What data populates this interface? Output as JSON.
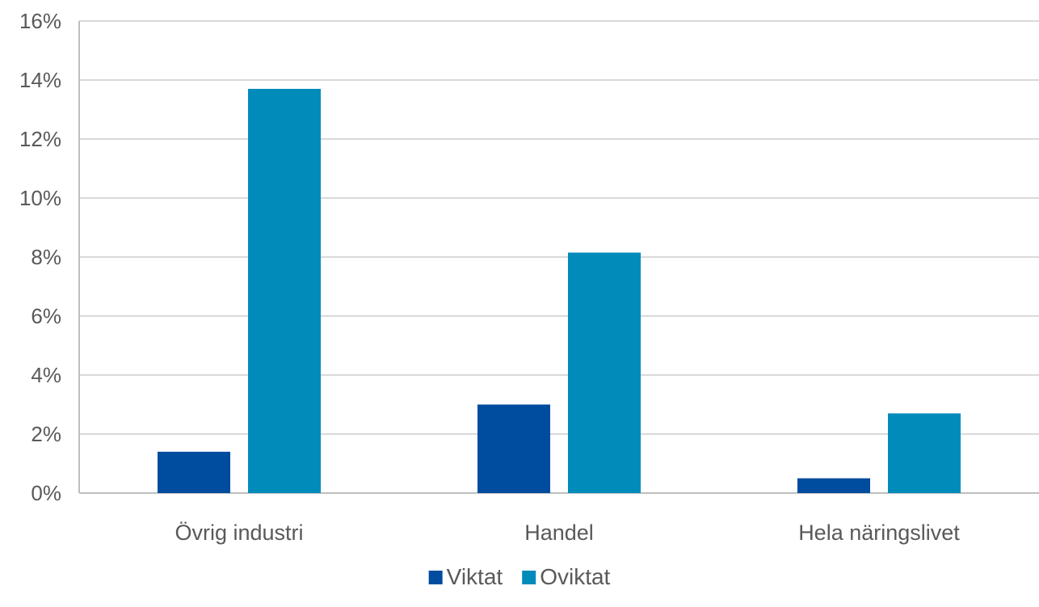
{
  "chart_data": {
    "type": "bar",
    "categories": [
      "Övrig industri",
      "Handel",
      "Hela näringslivet"
    ],
    "series": [
      {
        "name": "Viktat",
        "color": "#004c9e",
        "values": [
          1.4,
          3.0,
          0.5
        ]
      },
      {
        "name": "Oviktat",
        "color": "#008bbb",
        "values": [
          13.7,
          8.15,
          2.7
        ]
      }
    ],
    "y_ticks": [
      "0%",
      "2%",
      "4%",
      "6%",
      "8%",
      "10%",
      "12%",
      "14%",
      "16%"
    ],
    "ylim": [
      0,
      16
    ],
    "title": "",
    "xlabel": "",
    "ylabel": "",
    "grid": true,
    "legend_position": "bottom-center"
  },
  "colors": {
    "grid": "#d9d9d9",
    "axis_text": "#595959",
    "border": "#bfbfbf"
  }
}
